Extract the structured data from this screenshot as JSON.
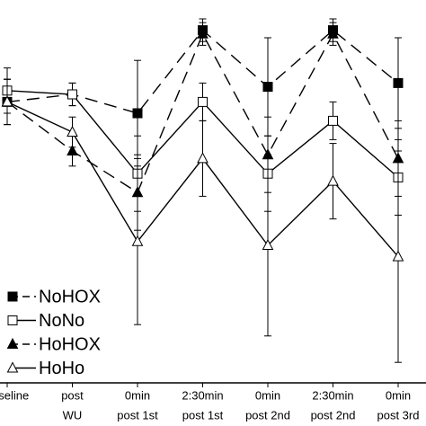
{
  "chart_data": {
    "type": "line",
    "categories": [
      [
        "baseline"
      ],
      [
        "post",
        "WU"
      ],
      [
        "0min",
        "post 1st"
      ],
      [
        "2:30min",
        "post 1st"
      ],
      [
        "0min",
        "post 2nd"
      ],
      [
        "2:30min",
        "post 2nd"
      ],
      [
        "0min",
        "post 3rd"
      ]
    ],
    "ylim": [
      0,
      100
    ],
    "series": [
      {
        "name": "NoHOX",
        "color": "#000000",
        "marker": "square",
        "filled": true,
        "line_style": "dashed",
        "values": [
          73,
          75,
          70,
          92,
          77,
          92,
          78
        ],
        "errors": [
          6,
          3,
          14,
          3,
          13,
          3,
          12
        ]
      },
      {
        "name": "NoNo",
        "color": "#000000",
        "marker": "square",
        "filled": false,
        "line_style": "solid",
        "values": [
          76,
          75,
          54,
          73,
          54,
          68,
          53
        ],
        "errors": [
          6,
          3,
          10,
          5,
          10,
          5,
          10
        ]
      },
      {
        "name": "HoHOX",
        "color": "#000000",
        "marker": "triangle",
        "filled": true,
        "line_style": "dashed",
        "values": [
          73,
          60,
          49,
          91,
          59,
          91,
          58
        ],
        "errors": [
          6,
          4,
          10,
          3,
          10,
          3,
          10
        ]
      },
      {
        "name": "HoHo",
        "color": "#000000",
        "marker": "triangle",
        "filled": false,
        "line_style": "solid",
        "values": [
          73,
          65,
          36,
          58,
          35,
          52,
          32
        ],
        "errors": [
          6,
          4,
          22,
          10,
          24,
          10,
          28
        ]
      }
    ],
    "legend": "lower-left"
  }
}
